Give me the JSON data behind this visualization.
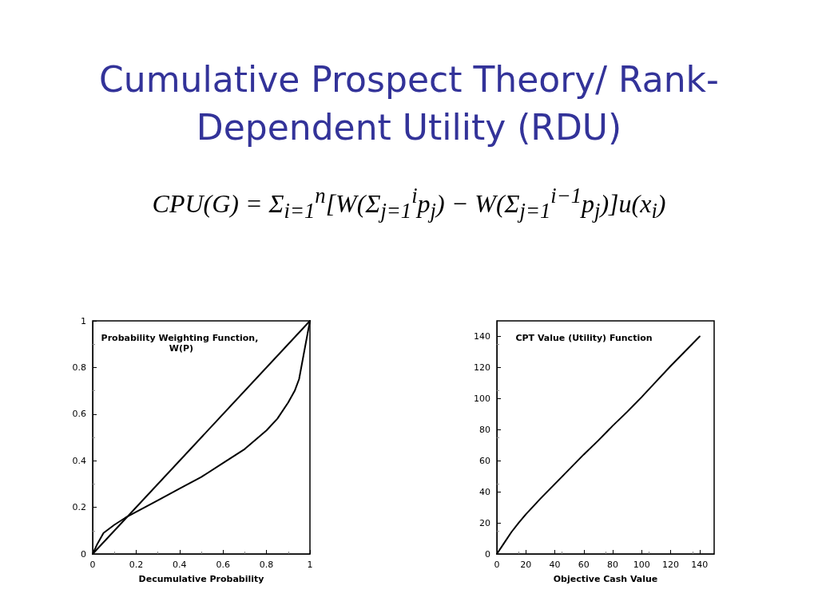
{
  "chart_data": [
    {
      "type": "line",
      "title": "Probability Weighting Function, W(P)",
      "xlabel": "Decumulative Probability",
      "annotations": [
        "Cumulative Prospect Theory/ Rank-Dependent Utility (RDU)",
        "CPU(G) = Σ$_{i=1}$$^{n}$[W(Σ$_{j=1}$$^{i}$p$_{j}$) − W(Σ$_{j=1}$$^{i−1}$p$_{j}$)]u(x$_{i}$)"
      ],
      "xlim": [
        0,
        1
      ],
      "ylim": [
        0,
        1
      ],
      "xticks": [
        0,
        0.2,
        0.4,
        0.6,
        0.8,
        1
      ],
      "yticks": [
        0,
        0.2,
        0.4,
        0.6,
        0.8,
        1
      ],
      "grid": false,
      "marker": "none",
      "line_style": "solid",
      "series": [
        {
          "color": "#000000",
          "x": [
            0,
            1
          ],
          "values": [
            0,
            1
          ]
        },
        {
          "color": "#000000",
          "x": [
            0,
            0.02,
            0.05,
            0.1,
            0.15,
            0.2,
            0.3,
            0.4,
            0.5,
            0.6,
            0.7,
            0.8,
            0.85,
            0.9,
            0.93,
            0.95,
            0.97,
            1
          ],
          "values": [
            0,
            0.04,
            0.09,
            0.125,
            0.155,
            0.18,
            0.23,
            0.28,
            0.33,
            0.39,
            0.45,
            0.53,
            0.58,
            0.65,
            0.7,
            0.75,
            0.85,
            1
          ]
        }
      ]
    },
    {
      "type": "line",
      "title": "CPT Value (Utility) Function",
      "xlabel": "Objective Cash Value",
      "xlim": [
        0,
        150
      ],
      "ylim": [
        0,
        150
      ],
      "xticks": [
        0,
        20,
        40,
        60,
        80,
        100,
        120,
        140
      ],
      "yticks": [
        0,
        20,
        40,
        60,
        80,
        100,
        120,
        140
      ],
      "grid": false,
      "marker": "none",
      "line_style": "solid",
      "series": [
        {
          "color": "#000000",
          "x": [
            0,
            5,
            10,
            15,
            20,
            30,
            40,
            50,
            60,
            70,
            80,
            90,
            100,
            110,
            120,
            130,
            140
          ],
          "values": [
            0,
            7,
            14,
            20,
            25.5,
            35.5,
            45,
            54.5,
            64,
            73,
            82.5,
            91.5,
            101,
            111,
            121,
            130.5,
            140
          ]
        }
      ]
    }
  ]
}
